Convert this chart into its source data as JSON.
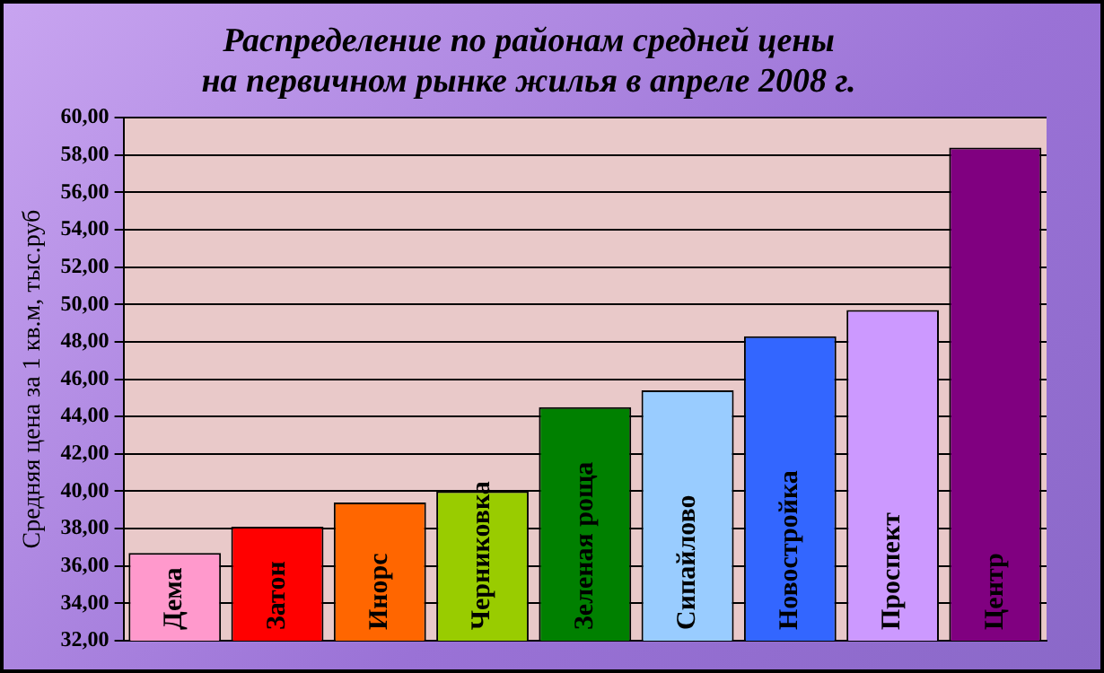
{
  "chart_data": {
    "type": "bar",
    "title": "Распределение по районам средней цены\nна первичном рынке жилья в апреле 2008 г.",
    "ylabel": "Средняя цена за 1 кв.м, тыс.руб",
    "categories": [
      "Дема",
      "Затон",
      "Инорс",
      "Черниковка",
      "Зеленая роща",
      "Сипайлово",
      "Новостройка",
      "Проспект",
      "Центр"
    ],
    "values": [
      36.7,
      38.1,
      39.4,
      40.0,
      44.5,
      45.4,
      48.3,
      49.7,
      58.4
    ],
    "colors": [
      "#ff99cc",
      "#ff0000",
      "#ff6600",
      "#99cc00",
      "#008000",
      "#99ccff",
      "#3366ff",
      "#cc99ff",
      "#800080"
    ],
    "ylim": [
      32,
      60
    ],
    "yticks": [
      {
        "value": 32,
        "label": "32,00"
      },
      {
        "value": 34,
        "label": "34,00"
      },
      {
        "value": 36,
        "label": "36,00"
      },
      {
        "value": 38,
        "label": "38,00"
      },
      {
        "value": 40,
        "label": "40,00"
      },
      {
        "value": 42,
        "label": "42,00"
      },
      {
        "value": 44,
        "label": "44,00"
      },
      {
        "value": 46,
        "label": "46,00"
      },
      {
        "value": 48,
        "label": "48,00"
      },
      {
        "value": 50,
        "label": "50,00"
      },
      {
        "value": 52,
        "label": "52,00"
      },
      {
        "value": 54,
        "label": "54,00"
      },
      {
        "value": 56,
        "label": "56,00"
      },
      {
        "value": 58,
        "label": "58,00"
      },
      {
        "value": 60,
        "label": "60,00"
      }
    ],
    "grid": "y",
    "legend": false
  }
}
